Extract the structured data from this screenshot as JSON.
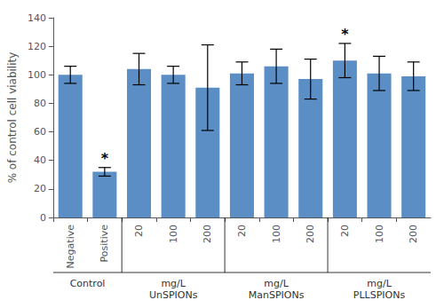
{
  "chart_data": {
    "type": "bar",
    "categories": [
      "Negative",
      "Positive",
      "20",
      "100",
      "200",
      "20",
      "100",
      "200",
      "20",
      "100",
      "200"
    ],
    "values": [
      100,
      32,
      104,
      100,
      91,
      101,
      106,
      97,
      110,
      101,
      99
    ],
    "errors": [
      6,
      3,
      11,
      6,
      30,
      8,
      12,
      14,
      12,
      12,
      10
    ],
    "color": "#5b8ec4",
    "ylabel": "% of control cell viability",
    "ylim": [
      0,
      140
    ],
    "yticks": [
      0,
      20,
      40,
      60,
      80,
      100,
      120,
      140
    ],
    "grid": false,
    "annotations": [
      {
        "text": "*",
        "index": 1
      },
      {
        "text": "*",
        "index": 8
      }
    ],
    "groups": [
      {
        "label": "Control",
        "first": 0,
        "last": 1
      },
      {
        "label": "mg/L\nUnSPIONs",
        "first": 2,
        "last": 4
      },
      {
        "label": "mg/L\nManSPIONs",
        "first": 5,
        "last": 7
      },
      {
        "label": "mg/L\nPLLSPIONs",
        "first": 8,
        "last": 10
      }
    ]
  }
}
